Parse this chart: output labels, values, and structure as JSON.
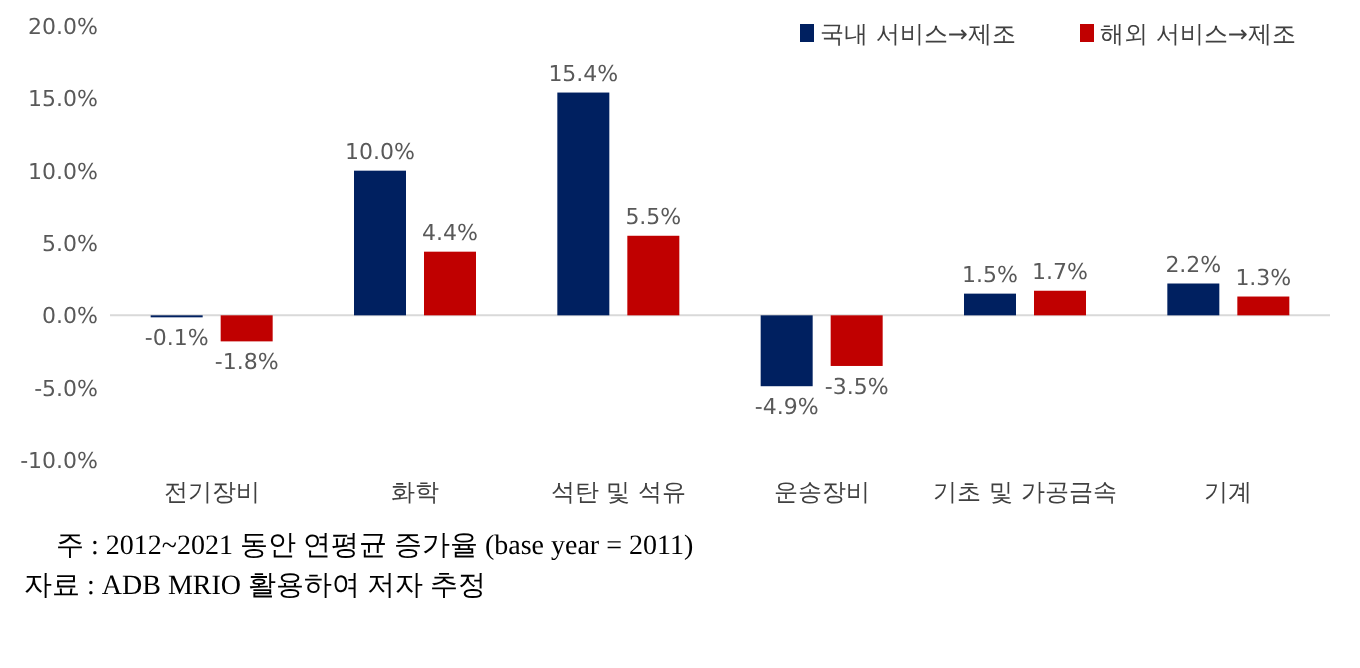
{
  "chart_data": {
    "type": "bar",
    "categories": [
      "전기장비",
      "화학",
      "석탄 및 석유",
      "운송장비",
      "기초 및 가공금속",
      "기계"
    ],
    "series": [
      {
        "name": "국내 서비스→제조",
        "color": "#002060",
        "values": [
          -0.1,
          10.0,
          15.4,
          -4.9,
          1.5,
          2.2
        ],
        "value_labels": [
          "-0.1%",
          "10.0%",
          "15.4%",
          "-4.9%",
          "1.5%",
          "2.2%"
        ]
      },
      {
        "name": "해외 서비스→제조",
        "color": "#c00000",
        "values": [
          -1.8,
          4.4,
          5.5,
          -3.5,
          1.7,
          1.3
        ],
        "value_labels": [
          "-1.8%",
          "4.4%",
          "5.5%",
          "-3.5%",
          "1.7%",
          "1.3%"
        ]
      }
    ],
    "ylim": [
      -10,
      20
    ],
    "yticks": [
      {
        "value": -10,
        "label": "-10.0%"
      },
      {
        "value": -5,
        "label": "-5.0%"
      },
      {
        "value": 0,
        "label": "0.0%"
      },
      {
        "value": 5,
        "label": "5.0%"
      },
      {
        "value": 10,
        "label": "10.0%"
      },
      {
        "value": 15,
        "label": "15.0%"
      },
      {
        "value": 20,
        "label": "20.0%"
      }
    ],
    "legend": "top right",
    "annotations": [
      "주 : 2012~2021 동안 연평균 증가율 (base year = 2011)",
      "자료 : ADB MRIO 활용하여 저자 추정"
    ]
  }
}
